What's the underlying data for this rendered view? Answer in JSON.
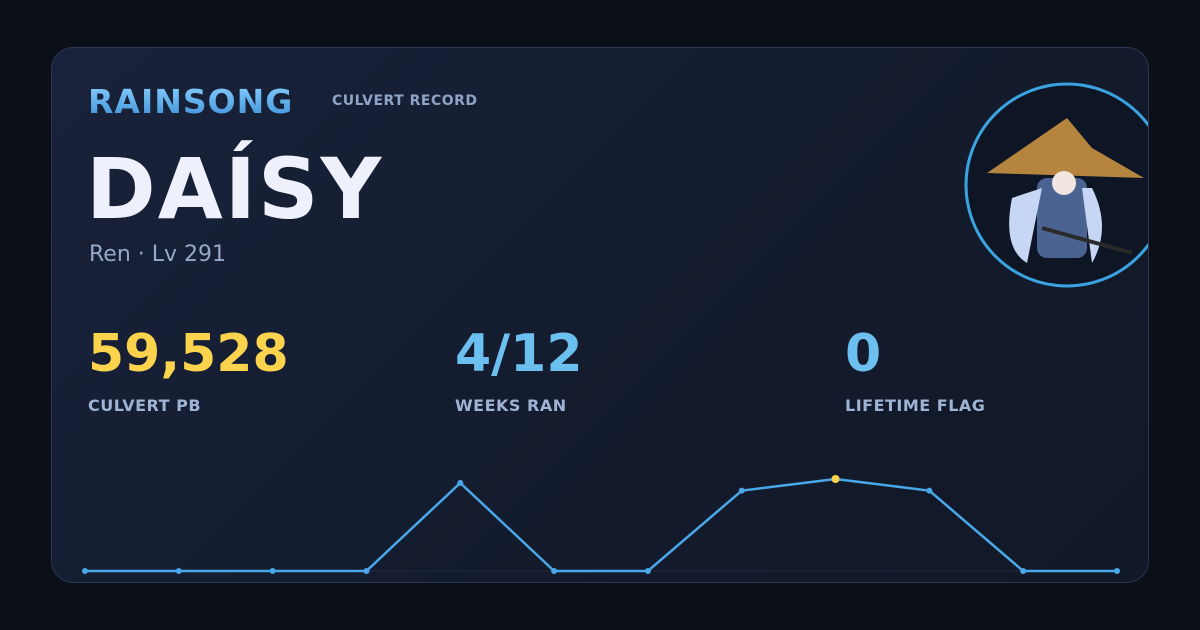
{
  "header": {
    "brand": "RAINSONG",
    "subtitle": "CULVERT RECORD"
  },
  "player": {
    "name": "DAÍSY",
    "info": "Ren · Lv 291"
  },
  "stats": [
    {
      "value": "59,528",
      "label": "CULVERT PB",
      "color": "#fcd34d"
    },
    {
      "value": "4/12",
      "label": "WEEKS RAN",
      "color": "#6cc0f0"
    },
    {
      "value": "0",
      "label": "LIFETIME FLAG",
      "color": "#6cc0f0"
    }
  ],
  "chart_data": {
    "type": "line",
    "values": [
      0,
      0,
      0,
      0,
      57000,
      0,
      0,
      52000,
      59528,
      52000,
      0,
      0
    ],
    "color": "#4aa8e8",
    "highlight_color": "#fcd34d"
  }
}
